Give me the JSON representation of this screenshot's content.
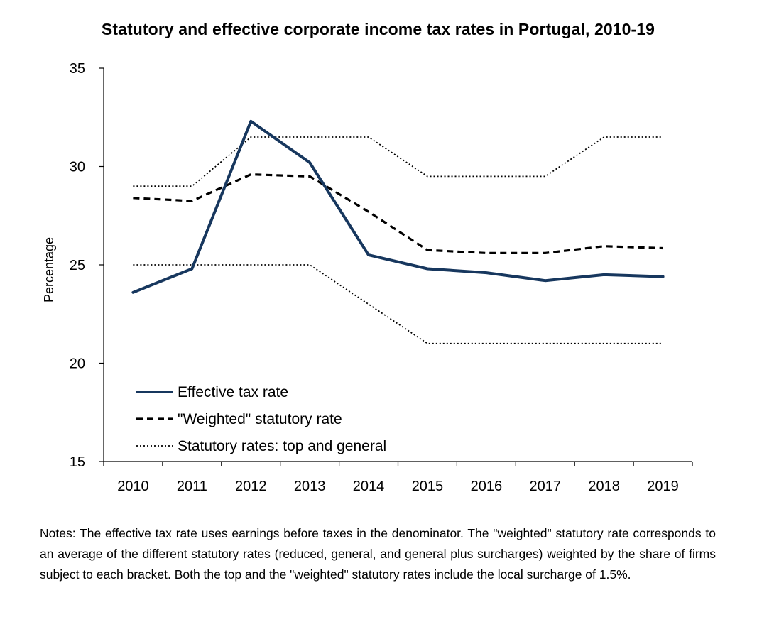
{
  "chart_data": {
    "type": "line",
    "title": "Statutory and effective corporate income tax rates in Portugal, 2010-19",
    "xlabel": "",
    "ylabel": "Percentage",
    "ylim": [
      15,
      35
    ],
    "yticks": [
      15,
      20,
      25,
      30,
      35
    ],
    "categories": [
      "2010",
      "2011",
      "2012",
      "2013",
      "2014",
      "2015",
      "2016",
      "2017",
      "2018",
      "2019"
    ],
    "series": [
      {
        "name": "Effective tax rate",
        "style": "solid",
        "color": "#17375e",
        "values": [
          23.6,
          24.8,
          32.3,
          30.2,
          25.5,
          24.8,
          24.6,
          24.2,
          24.5,
          24.4
        ]
      },
      {
        "name": "\"Weighted\" statutory rate",
        "style": "dashed",
        "color": "#000000",
        "values": [
          28.4,
          28.25,
          29.6,
          29.5,
          27.7,
          25.75,
          25.6,
          25.6,
          25.95,
          25.85
        ]
      },
      {
        "name": "Statutory rates: top and general",
        "style": "dotted",
        "color": "#000000",
        "values": [
          29.0,
          29.0,
          31.5,
          31.5,
          31.5,
          29.5,
          29.5,
          29.5,
          31.5,
          31.5
        ]
      },
      {
        "name": "",
        "style": "dotted",
        "color": "#000000",
        "values": [
          25.0,
          25.0,
          25.0,
          25.0,
          23.0,
          21.0,
          21.0,
          21.0,
          21.0,
          21.0
        ]
      }
    ],
    "legend": {
      "position": "bottom-left",
      "entries": [
        "Effective tax rate",
        "\"Weighted\" statutory rate",
        "Statutory rates: top and general"
      ]
    },
    "grid": false
  },
  "notes": "Notes: The effective tax rate uses earnings before taxes in the denominator. The \"weighted\" statutory rate corresponds to an average of the different statutory rates (reduced, general, and general plus surcharges) weighted by the share of firms subject to each bracket. Both the top and the \"weighted\" statutory rates include the local surcharge of 1.5%."
}
